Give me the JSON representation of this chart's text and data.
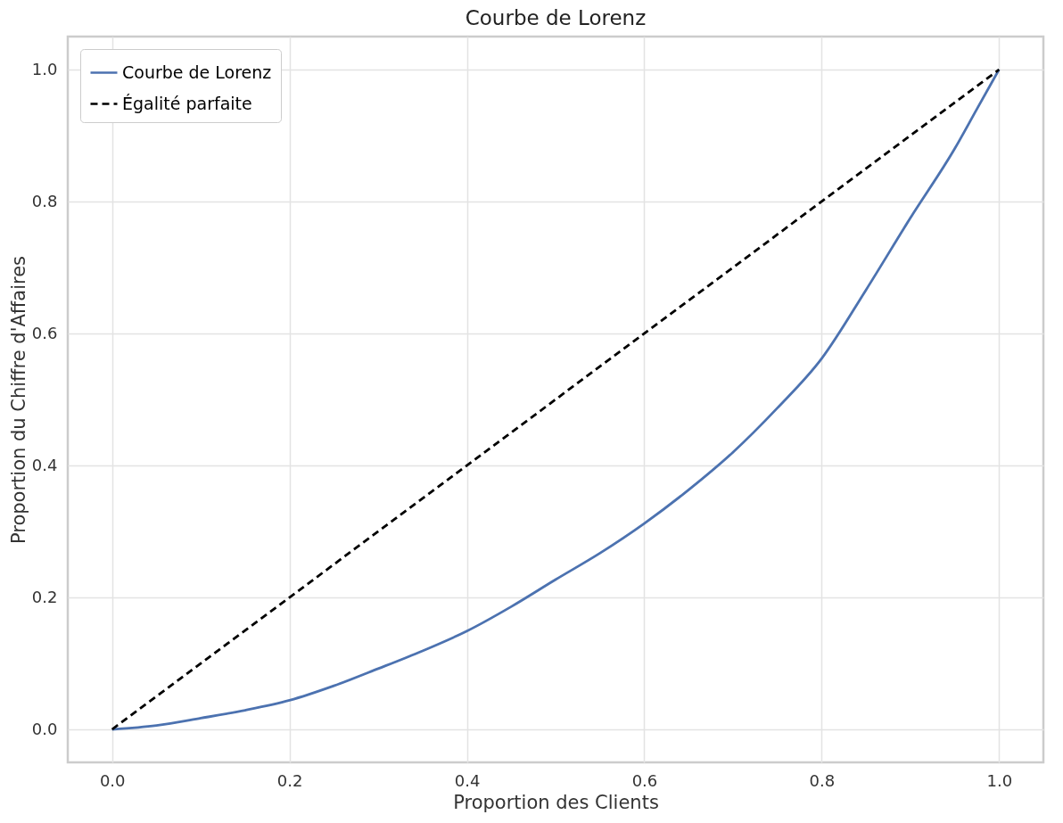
{
  "chart_data": {
    "type": "line",
    "title": "Courbe de Lorenz",
    "xlabel": "Proportion des Clients",
    "ylabel": "Proportion du Chiffre d'Affaires",
    "xlim": [
      -0.05,
      1.05
    ],
    "ylim": [
      -0.05,
      1.05
    ],
    "xticks": [
      {
        "value": 0,
        "label": "0.0"
      },
      {
        "value": 0.2,
        "label": "0.2"
      },
      {
        "value": 0.4,
        "label": "0.4"
      },
      {
        "value": 0.6,
        "label": "0.6"
      },
      {
        "value": 0.8,
        "label": "0.8"
      },
      {
        "value": 1,
        "label": "1.0"
      }
    ],
    "yticks": [
      {
        "value": 0,
        "label": "0.0"
      },
      {
        "value": 0.2,
        "label": "0.2"
      },
      {
        "value": 0.4,
        "label": "0.4"
      },
      {
        "value": 0.6,
        "label": "0.6"
      },
      {
        "value": 0.8,
        "label": "0.8"
      },
      {
        "value": 1,
        "label": "1.0"
      }
    ],
    "grid": true,
    "legend": "top left",
    "series": [
      {
        "name": "Courbe de Lorenz",
        "color": "#4c72b0",
        "line_style": "solid",
        "x": [
          0,
          0.05,
          0.1,
          0.15,
          0.2,
          0.25,
          0.3,
          0.35,
          0.4,
          0.45,
          0.5,
          0.55,
          0.6,
          0.65,
          0.7,
          0.75,
          0.8,
          0.85,
          0.9,
          0.95,
          0.975,
          1
        ],
        "values": [
          0,
          0.006,
          0.017,
          0.029,
          0.044,
          0.066,
          0.092,
          0.119,
          0.149,
          0.186,
          0.227,
          0.267,
          0.312,
          0.363,
          0.42,
          0.487,
          0.562,
          0.666,
          0.775,
          0.88,
          0.94,
          1
        ]
      },
      {
        "name": "Égalité parfaite",
        "color": "#000000",
        "line_style": "dashed",
        "x": [
          0,
          1
        ],
        "values": [
          0,
          1
        ]
      }
    ]
  }
}
